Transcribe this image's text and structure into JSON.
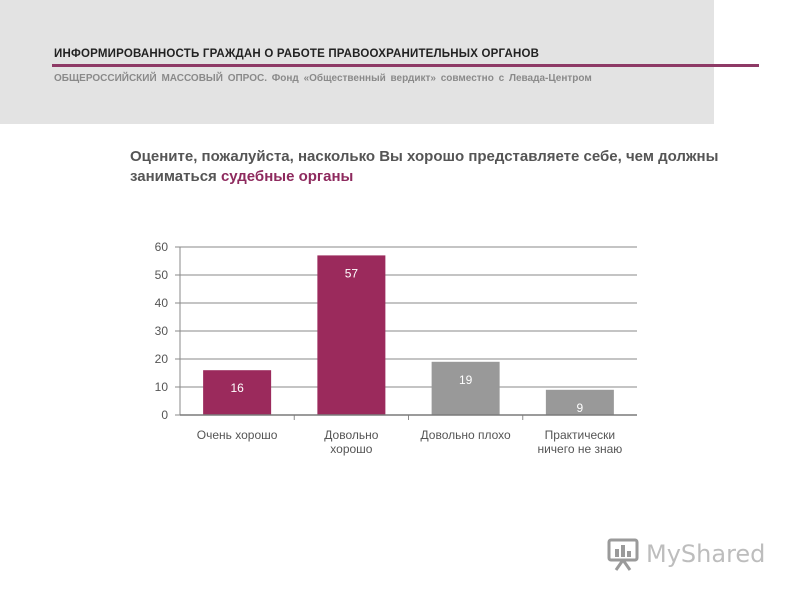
{
  "header": {
    "title": "ИНФОРМИРОВАННОСТЬ ГРАЖДАН О РАБОТЕ ПРАВООХРАНИТЕЛЬНЫХ ОРГАНОВ",
    "subtitle": "ОБЩЕРОССИЙСКИЙ МАССОВЫЙ ОПРОС. Фонд «Общественный вердикт» совместно с Левада-Центром",
    "accent_color": "#8e3a66"
  },
  "question": {
    "text_before": "Оцените, пожалуйста, насколько Вы хорошо представляете себе, чем должны заниматься ",
    "highlight": "судебные органы",
    "highlight_color": "#8e2a5e"
  },
  "chart_data": {
    "type": "bar",
    "categories": [
      [
        "Очень хорошо"
      ],
      [
        "Довольно",
        "хорошо"
      ],
      [
        "Довольно плохо"
      ],
      [
        "Практически",
        "ничего не знаю"
      ]
    ],
    "values": [
      16,
      57,
      19,
      9
    ],
    "value_labels": [
      "16",
      "57",
      "19",
      "9"
    ],
    "bar_colors": [
      "#9b2a5c",
      "#9b2a5c",
      "#999999",
      "#999999"
    ],
    "ylim": [
      0,
      60
    ],
    "yticks": [
      0,
      10,
      20,
      30,
      40,
      50,
      60
    ],
    "grid": true,
    "legend": "none",
    "title": "",
    "xlabel": "",
    "ylabel": ""
  },
  "watermark": {
    "text": "MyShared",
    "icon": "presentation-board-icon"
  }
}
